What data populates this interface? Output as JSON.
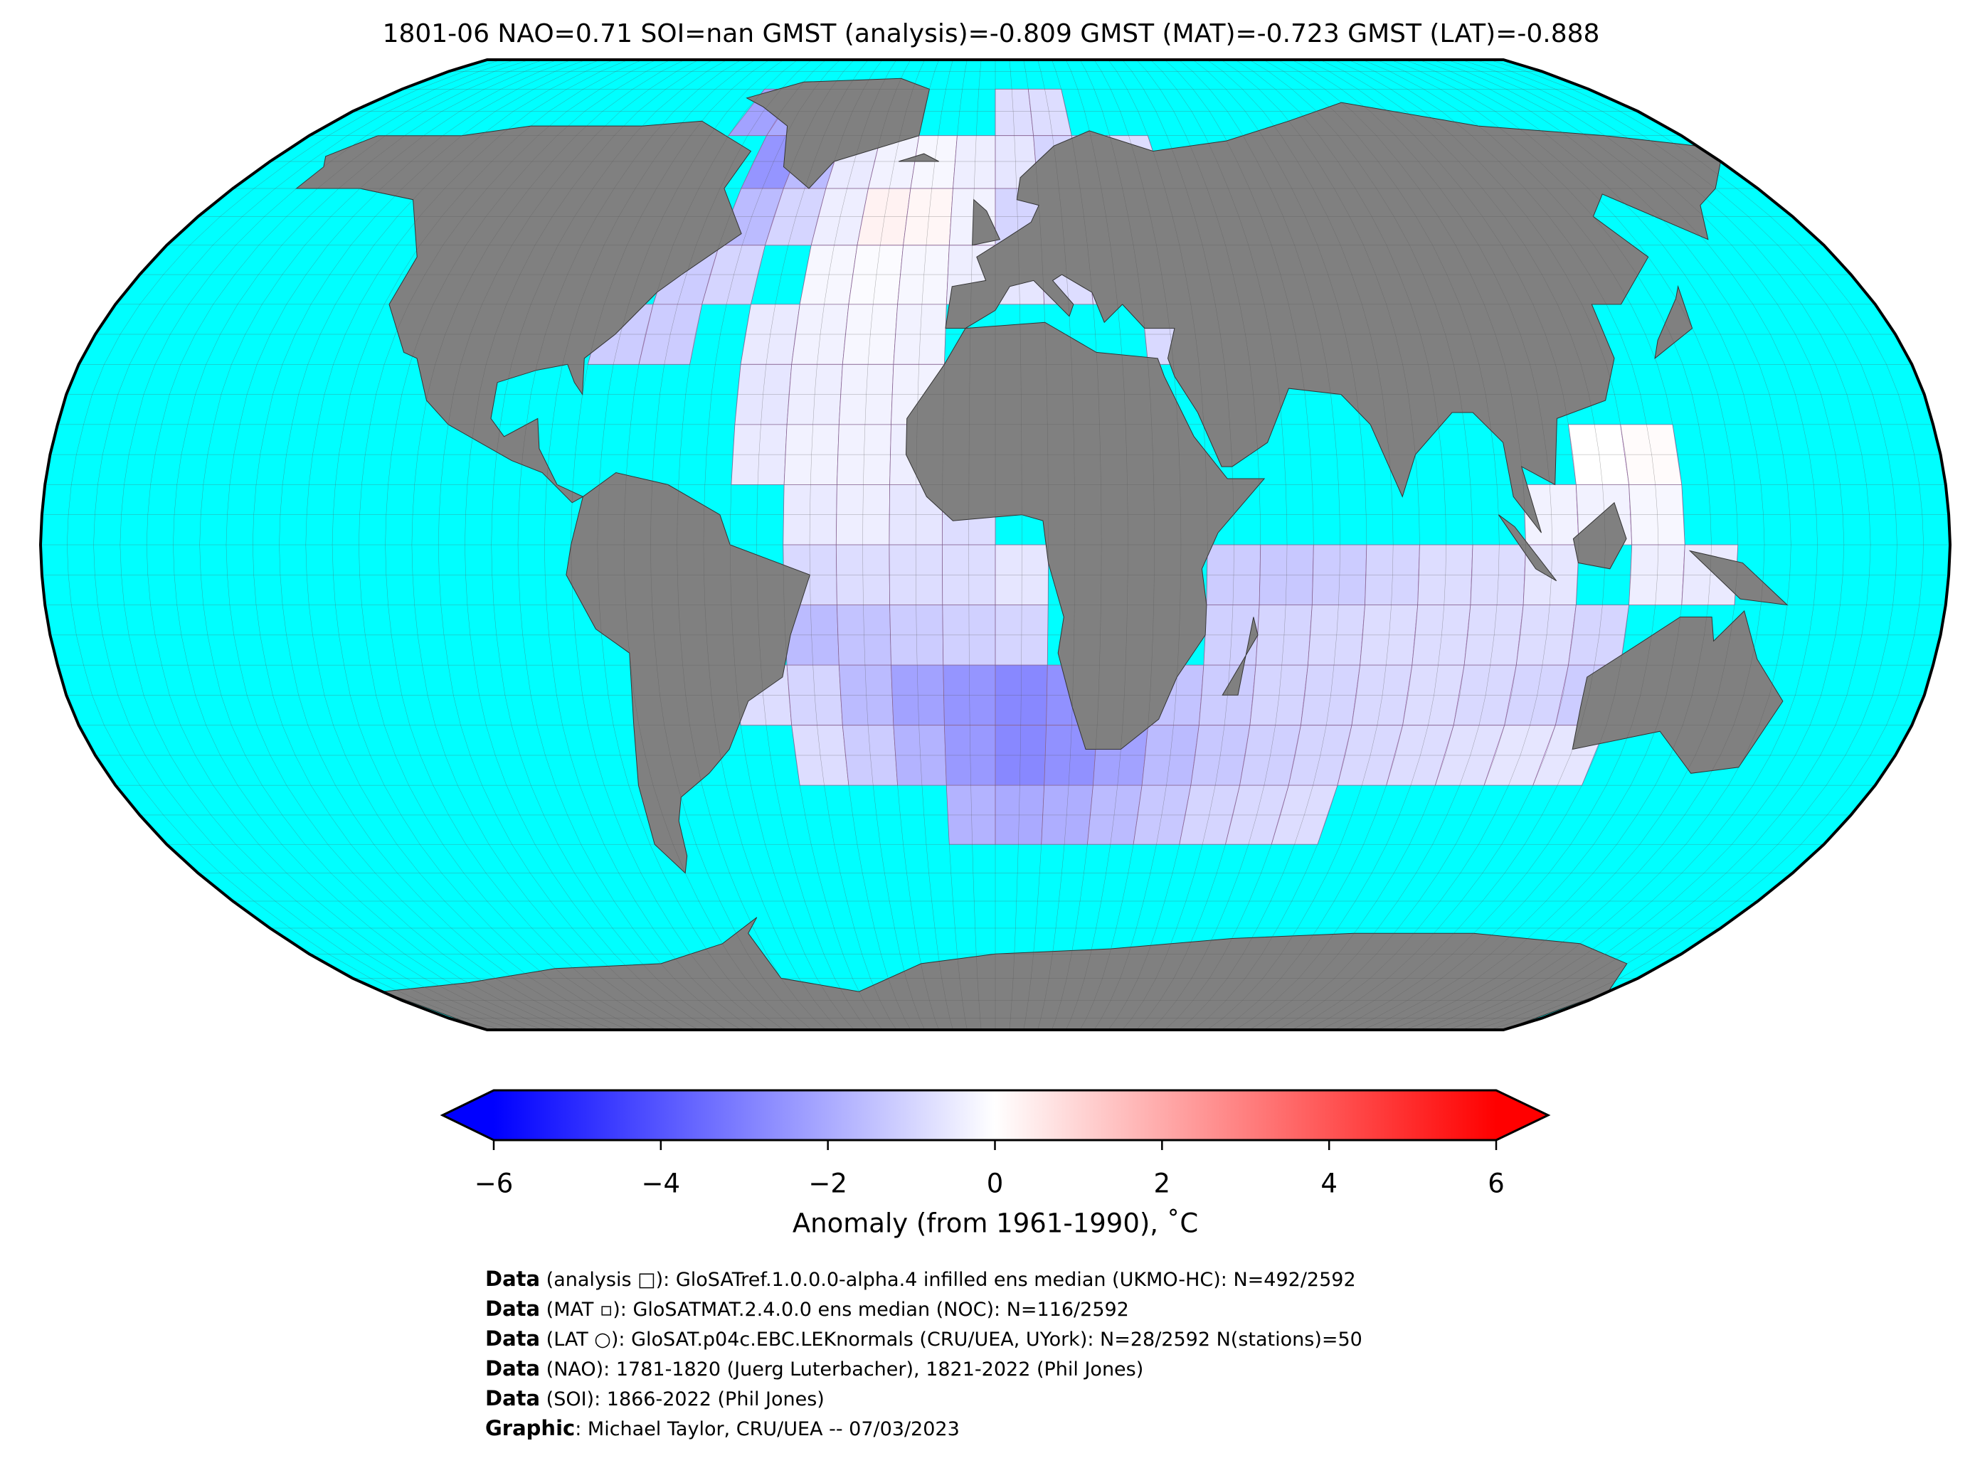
{
  "chart_data": {
    "type": "map",
    "title": "1801-06 NAO=0.71 SOI=nan GMST (analysis)=-0.809 GMST (MAT)=-0.723 GMST (LAT)=-0.888",
    "ocean_color": "#00ffff",
    "land_color": "#808080",
    "cells": {
      "lon": [
        -70,
        -60,
        0,
        10,
        -60,
        -50,
        -40,
        -30,
        -20,
        -10,
        0,
        10,
        20,
        30,
        -60,
        -50,
        -40,
        -30,
        -20,
        -10,
        0,
        10,
        20,
        30,
        -70,
        -60,
        -40,
        -30,
        -20,
        -10,
        0,
        10,
        20,
        30,
        -80,
        -70,
        -50,
        -40,
        -30,
        -20,
        30,
        40,
        -50,
        -40,
        -30,
        -20,
        40,
        -50,
        -40,
        -30,
        -20,
        110,
        120,
        -40,
        -30,
        -20,
        -10,
        100,
        110,
        120,
        -40,
        -30,
        -20,
        -10,
        0,
        40,
        50,
        60,
        70,
        80,
        90,
        100,
        120,
        130,
        -40,
        -30,
        -20,
        -10,
        0,
        40,
        50,
        60,
        70,
        80,
        90,
        100,
        110,
        -50,
        -40,
        -30,
        -20,
        -10,
        0,
        10,
        20,
        30,
        40,
        50,
        60,
        70,
        80,
        90,
        100,
        110,
        -40,
        -30,
        -20,
        -10,
        0,
        10,
        20,
        30,
        40,
        50,
        60,
        70,
        80,
        90,
        100,
        110,
        -10,
        0,
        10,
        20,
        30,
        40,
        50,
        60
      ],
      "lat": [
        70,
        70,
        70,
        70,
        60,
        60,
        60,
        60,
        60,
        60,
        60,
        60,
        60,
        60,
        50,
        50,
        50,
        50,
        50,
        50,
        50,
        50,
        50,
        50,
        40,
        40,
        40,
        40,
        40,
        40,
        40,
        40,
        40,
        40,
        30,
        30,
        30,
        30,
        30,
        30,
        30,
        30,
        20,
        20,
        20,
        20,
        20,
        10,
        10,
        10,
        10,
        10,
        10,
        0,
        0,
        0,
        0,
        0,
        0,
        0,
        -10,
        -10,
        -10,
        -10,
        -10,
        -10,
        -10,
        -10,
        -10,
        -10,
        -10,
        -10,
        -10,
        -10,
        -20,
        -20,
        -20,
        -20,
        -20,
        -20,
        -20,
        -20,
        -20,
        -20,
        -20,
        -20,
        -20,
        -30,
        -30,
        -30,
        -30,
        -30,
        -30,
        -30,
        -30,
        -30,
        -30,
        -30,
        -30,
        -30,
        -30,
        -30,
        -30,
        -30,
        -40,
        -40,
        -40,
        -40,
        -40,
        -40,
        -40,
        -40,
        -40,
        -40,
        -40,
        -40,
        -40,
        -40,
        -40,
        -40,
        -50,
        -50,
        -50,
        -50,
        -50,
        -50,
        -50,
        -50
      ],
      "values": [
        -2.2,
        -2.0,
        -0.8,
        -0.8,
        -2.5,
        -1.6,
        -0.5,
        -0.3,
        -0.2,
        -0.4,
        -0.6,
        -1.0,
        -1.0,
        -0.8,
        -1.6,
        -1.0,
        -0.4,
        0.3,
        0.2,
        -0.3,
        -1.0,
        -1.2,
        -1.0,
        -1.0,
        -1.2,
        -1.0,
        -0.2,
        -0.1,
        -0.2,
        -0.4,
        -0.6,
        -0.8,
        -0.8,
        -0.8,
        -1.2,
        -1.2,
        -0.5,
        -0.3,
        -0.2,
        -0.3,
        -0.9,
        -0.5,
        -0.6,
        -0.4,
        -0.3,
        -0.3,
        -0.4,
        -0.5,
        -0.3,
        -0.3,
        -0.4,
        0.0,
        0.1,
        -0.5,
        -0.4,
        -0.6,
        -0.8,
        -0.3,
        -0.3,
        -0.2,
        -0.9,
        -0.8,
        -0.8,
        -0.8,
        -0.6,
        -1.2,
        -1.3,
        -1.2,
        -1.0,
        -0.8,
        -0.8,
        -0.6,
        -0.4,
        -0.5,
        -1.6,
        -1.4,
        -1.2,
        -1.1,
        -1.0,
        -1.1,
        -1.0,
        -0.9,
        -0.8,
        -0.8,
        -0.8,
        -0.8,
        -1.0,
        -0.8,
        -1.0,
        -1.6,
        -2.2,
        -2.5,
        -2.8,
        -2.6,
        -1.8,
        -1.4,
        -1.2,
        -1.0,
        -1.0,
        -0.9,
        -0.8,
        -0.9,
        -1.0,
        -1.2,
        -0.8,
        -1.2,
        -1.8,
        -2.4,
        -2.8,
        -2.6,
        -2.2,
        -1.6,
        -1.3,
        -1.1,
        -1.0,
        -0.9,
        -0.8,
        -0.7,
        -0.6,
        -0.6,
        -1.8,
        -2.0,
        -1.9,
        -1.6,
        -1.3,
        -1.0,
        -0.9,
        -0.8
      ]
    },
    "colorbar": {
      "colors": [
        "#0000ff",
        "#ffffff",
        "#ff0000"
      ],
      "clim": [
        -6,
        6
      ],
      "ticks": [
        {
          "value": -6,
          "label": "−6"
        },
        {
          "value": -4,
          "label": "−4"
        },
        {
          "value": -2,
          "label": "−2"
        },
        0,
        2,
        4,
        6
      ],
      "label": "Anomaly (from 1961-1990), ˚C"
    },
    "footer": [
      {
        "bold": "Data",
        "text": " (analysis □): GloSATref.1.0.0.0-alpha.4 infilled ens median (UKMO-HC): N=492/2592"
      },
      {
        "bold": "Data",
        "text": " (MAT ▫): GloSATMAT.2.4.0.0 ens median (NOC): N=116/2592"
      },
      {
        "bold": "Data",
        "text": " (LAT ○): GloSAT.p04c.EBC.LEKnormals (CRU/UEA, UYork): N=28/2592 N(stations)=50"
      },
      {
        "bold": "Data",
        "text": " (NAO): 1781-1820 (Juerg Luterbacher), 1821-2022 (Phil Jones)"
      },
      {
        "bold": "Data",
        "text": " (SOI): 1866-2022 (Phil Jones)"
      },
      {
        "bold": "Graphic",
        "text": ": Michael Taylor, CRU/UEA -- 07/03/2023"
      }
    ]
  }
}
